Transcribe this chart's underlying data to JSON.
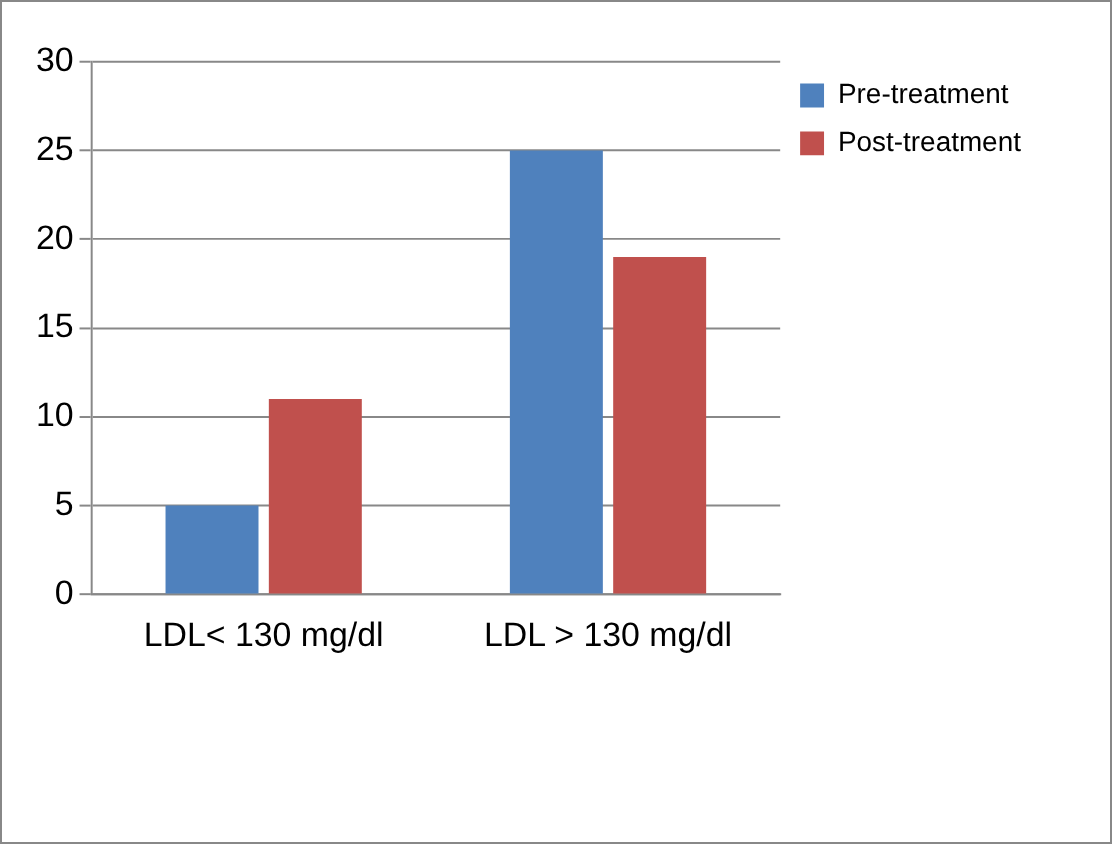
{
  "chart_data": {
    "type": "bar",
    "categories": [
      "LDL< 130 mg/dl",
      "LDL > 130 mg/dl"
    ],
    "series": [
      {
        "name": "Pre-treatment",
        "color": "#4f81bd",
        "values": [
          5,
          25
        ]
      },
      {
        "name": "Post-treatment",
        "color": "#c0504d",
        "values": [
          11,
          19
        ]
      }
    ],
    "ylim": [
      0,
      30
    ],
    "yticks": [
      0,
      5,
      10,
      15,
      20,
      25,
      30
    ],
    "grid": "y",
    "legend": "top right"
  }
}
